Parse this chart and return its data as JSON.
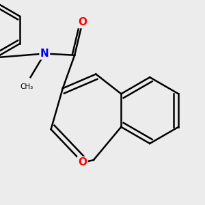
{
  "background_color": "#ececec",
  "bond_color": "#000000",
  "bond_width": 1.8,
  "atom_colors": {
    "O": "#ff0000",
    "N": "#0000ff",
    "C": "#000000"
  },
  "font_size_atoms": 11,
  "figure_size": [
    3.0,
    3.0
  ],
  "dpi": 100
}
